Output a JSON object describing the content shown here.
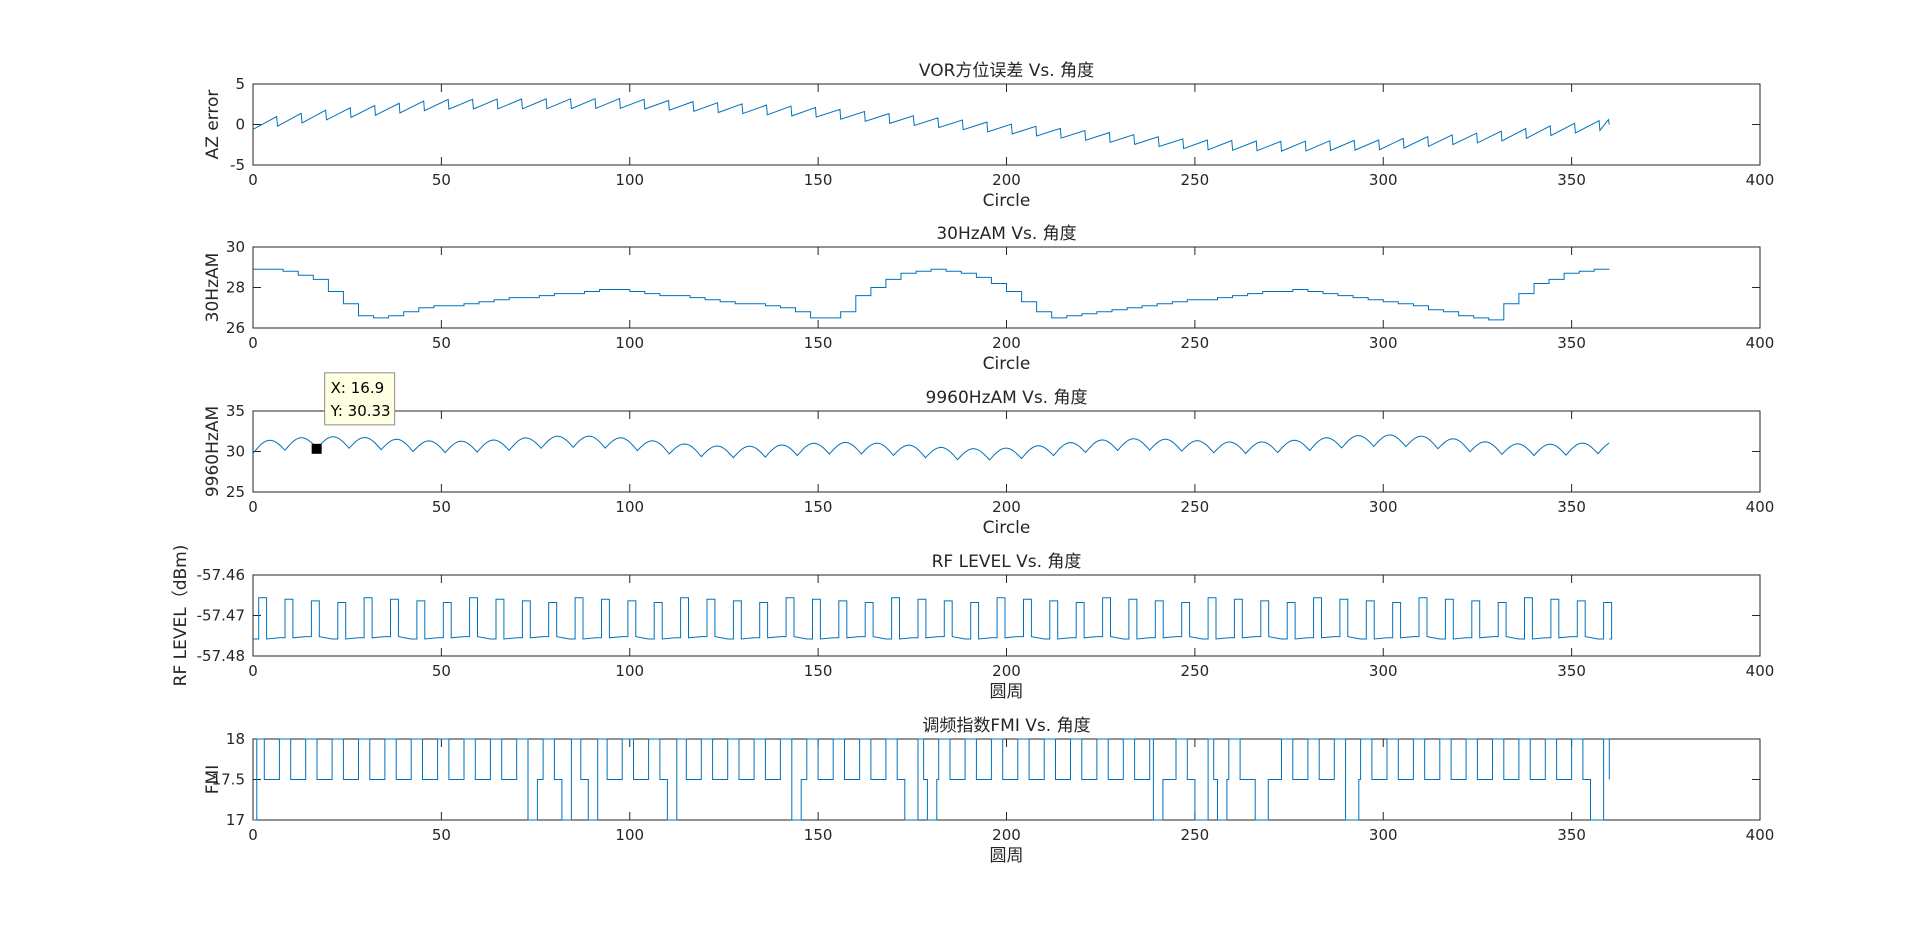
{
  "figure": {
    "background": "#ffffff",
    "line_color": "#0072bd"
  },
  "datatip": {
    "panel": 2,
    "x_label": "X: 16.9",
    "y_label": "Y: 30.33",
    "x": 16.9,
    "y": 30.33
  },
  "chart_data": [
    {
      "type": "line",
      "title": "VOR方位误差 Vs. 角度",
      "xlabel": "Circle",
      "ylabel": "AZ error",
      "xlim": [
        0,
        400
      ],
      "ylim": [
        -5,
        5
      ],
      "xticks": [
        "0",
        "50",
        "100",
        "150",
        "200",
        "250",
        "300",
        "350",
        "400"
      ],
      "yticks": [
        "5",
        "0",
        "-5"
      ],
      "ytick_values": [
        5,
        0,
        -5
      ],
      "pattern": "sawtooth",
      "x_end": 360,
      "period": 6.5,
      "amplitude": 1.2,
      "baseline": [
        [
          0,
          0
        ],
        [
          20,
          1.2
        ],
        [
          50,
          2.5
        ],
        [
          100,
          2.6
        ],
        [
          150,
          1.5
        ],
        [
          200,
          -0.5
        ],
        [
          250,
          -2.5
        ],
        [
          275,
          -2.7
        ],
        [
          300,
          -2.5
        ],
        [
          330,
          -1.5
        ],
        [
          360,
          0
        ]
      ],
      "grid": false
    },
    {
      "type": "line",
      "title": "30HzAM Vs. 角度",
      "xlabel": "Circle",
      "ylabel": "30HzAM",
      "xlim": [
        0,
        400
      ],
      "ylim": [
        26,
        30
      ],
      "xticks": [
        "0",
        "50",
        "100",
        "150",
        "200",
        "250",
        "300",
        "350",
        "400"
      ],
      "yticks": [
        "30",
        "28",
        "26"
      ],
      "ytick_values": [
        30,
        28,
        26
      ],
      "pattern": "steps",
      "x_end": 360,
      "step": 4,
      "baseline": [
        [
          0,
          28.9
        ],
        [
          8,
          28.8
        ],
        [
          15,
          28.5
        ],
        [
          20,
          27.8
        ],
        [
          28,
          26.6
        ],
        [
          33,
          26.5
        ],
        [
          45,
          27.0
        ],
        [
          70,
          27.5
        ],
        [
          95,
          27.9
        ],
        [
          120,
          27.4
        ],
        [
          140,
          27.0
        ],
        [
          150,
          26.4
        ],
        [
          155,
          26.6
        ],
        [
          160,
          27.6
        ],
        [
          170,
          28.6
        ],
        [
          180,
          28.9
        ],
        [
          190,
          28.6
        ],
        [
          198,
          28.0
        ],
        [
          205,
          27.2
        ],
        [
          210,
          26.5
        ],
        [
          215,
          26.6
        ],
        [
          230,
          27.0
        ],
        [
          260,
          27.6
        ],
        [
          275,
          27.9
        ],
        [
          290,
          27.5
        ],
        [
          310,
          27.0
        ],
        [
          320,
          26.6
        ],
        [
          328,
          26.4
        ],
        [
          332,
          27.2
        ],
        [
          340,
          28.2
        ],
        [
          350,
          28.8
        ],
        [
          360,
          28.9
        ]
      ],
      "grid": false
    },
    {
      "type": "line",
      "title": "9960HzAM Vs. 角度",
      "xlabel": "Circle",
      "ylabel": "9960HzAM",
      "xlim": [
        0,
        400
      ],
      "ylim": [
        25,
        35
      ],
      "xticks": [
        "0",
        "50",
        "100",
        "150",
        "200",
        "250",
        "300",
        "350",
        "400"
      ],
      "yticks": [
        "35",
        "30",
        "25"
      ],
      "ytick_values": [
        35,
        30,
        25
      ],
      "pattern": "wavy",
      "x_end": 360,
      "period": 8.5,
      "mean": 30.4,
      "amplitude": 1.4,
      "grid": false
    },
    {
      "type": "line",
      "title": "RF LEVEL Vs. 角度",
      "xlabel": "圆周",
      "ylabel": "RF LEVEL（dBm)",
      "xlim": [
        0,
        400
      ],
      "ylim": [
        -57.48,
        -57.46
      ],
      "xticks": [
        "0",
        "50",
        "100",
        "150",
        "200",
        "250",
        "300",
        "350",
        "400"
      ],
      "yticks": [
        "-57.46",
        "-57.47",
        "-57.48"
      ],
      "ytick_values": [
        -57.46,
        -57.47,
        -57.48
      ],
      "pattern": "pulses",
      "x_end": 360,
      "period": 7,
      "low": -57.4758,
      "high": -57.4656,
      "duty": 0.3,
      "grid": false
    },
    {
      "type": "line",
      "title": "调频指数FMI Vs. 角度",
      "xlabel": "圆周",
      "ylabel": "FMI",
      "xlim": [
        0,
        400
      ],
      "ylim": [
        17,
        18
      ],
      "xticks": [
        "0",
        "50",
        "100",
        "150",
        "200",
        "250",
        "300",
        "350",
        "400"
      ],
      "yticks": [
        "18",
        "17.5",
        "17"
      ],
      "ytick_values": [
        18,
        17.5,
        17
      ],
      "pattern": "levels",
      "x_end": 360,
      "period": 7,
      "levels": [
        18,
        17.5
      ],
      "drops": [
        [
          73,
          75
        ],
        [
          82,
          84
        ],
        [
          89,
          91
        ],
        [
          110,
          112
        ],
        [
          143,
          145
        ],
        [
          173,
          176
        ],
        [
          179,
          181
        ],
        [
          239,
          241
        ],
        [
          250,
          253
        ],
        [
          256,
          258
        ],
        [
          266,
          269
        ],
        [
          290,
          293
        ],
        [
          355,
          358
        ]
      ],
      "grid": false
    }
  ]
}
